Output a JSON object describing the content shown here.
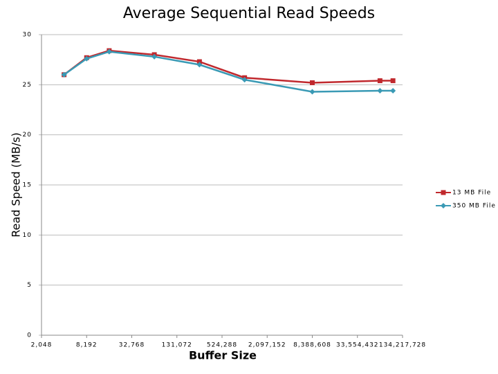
{
  "chart_data": {
    "type": "line",
    "title": "Average Sequential Read Speeds",
    "x_label": "Buffer Size",
    "y_label": "Read Speed (MB/s)",
    "x": [
      4096,
      8192,
      16384,
      65536,
      262144,
      1048576,
      8388608,
      67108864,
      100000000
    ],
    "series": [
      {
        "name": "13 MB File",
        "color": "#c0282d",
        "marker": "square",
        "values": [
          26.0,
          27.7,
          28.4,
          28.0,
          27.3,
          25.7,
          25.2,
          25.4,
          25.4
        ]
      },
      {
        "name": "350 MB File",
        "color": "#3a9ab5",
        "marker": "diamond",
        "values": [
          26.0,
          27.6,
          28.3,
          27.8,
          27.0,
          25.5,
          24.3,
          24.4,
          24.4
        ]
      }
    ],
    "xlim": [
      2048,
      134217728
    ],
    "xscale": "log2",
    "xticks": [
      {
        "value": 2048,
        "label": "2,048"
      },
      {
        "value": 8192,
        "label": "8,192"
      },
      {
        "value": 32768,
        "label": "32,768"
      },
      {
        "value": 131072,
        "label": "131,072"
      },
      {
        "value": 524288,
        "label": "524,288"
      },
      {
        "value": 2097152,
        "label": "2,097,152"
      },
      {
        "value": 8388608,
        "label": "8,388,608"
      },
      {
        "value": 33554432,
        "label": "33,554,432"
      },
      {
        "value": 134217728,
        "label": "134,217,728"
      }
    ],
    "ylim": [
      0,
      30
    ],
    "yticks": [
      0,
      5,
      10,
      15,
      20,
      25,
      30
    ],
    "grid": true,
    "legend": "right"
  }
}
